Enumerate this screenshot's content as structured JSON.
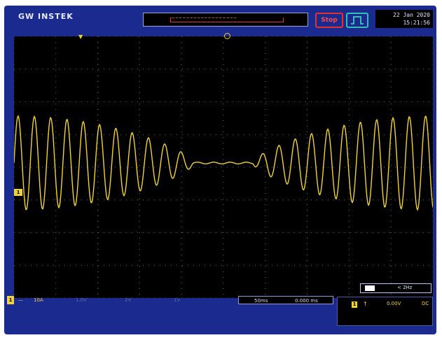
{
  "header": {
    "brand": "GW INSTEK",
    "memory_bar": "~~~~~~~~~~~~~~~~~~",
    "run_state": "Stop",
    "date": "22 Jan 2020",
    "time": "15:21:56"
  },
  "channel": {
    "marker": "1",
    "trigger_marker": "▼"
  },
  "bottom": {
    "ch1_index": "1",
    "ch1_coupling": "—",
    "ch1_scale": "10A",
    "ch2_scale": "1.0V",
    "ch3_scale": "2V",
    "ch4_scale": "1V",
    "timebase": "50ms",
    "position": "0.000 ms"
  },
  "trigger": {
    "source": "1",
    "slope": "↑",
    "level": "0.00V",
    "coupling": "DC",
    "freq": "< 2Hz"
  },
  "colors": {
    "frame": "#1a2a8e",
    "ch1": "#f0d23a"
  }
}
